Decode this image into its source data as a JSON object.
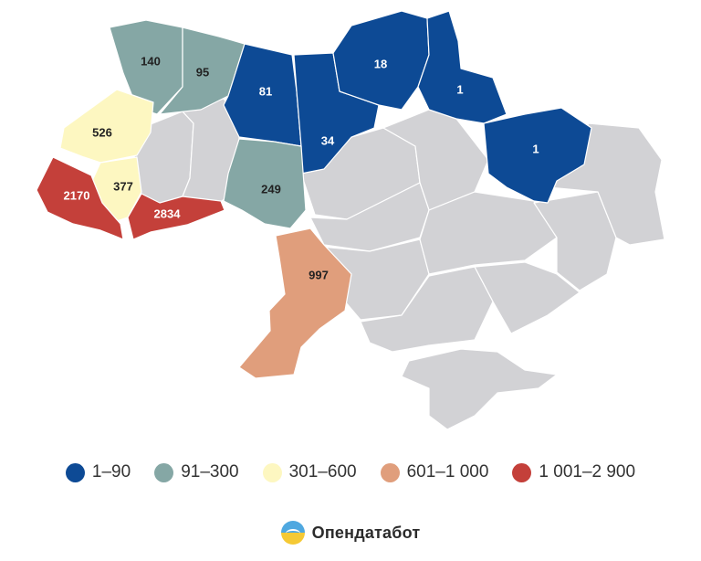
{
  "colors": {
    "bin_1": "#0d4a95",
    "bin_2": "#85a7a5",
    "bin_3": "#fdf7c1",
    "bin_4": "#e09e7c",
    "bin_5": "#c4403a",
    "no_data": "#d2d2d5"
  },
  "regions": {
    "volyn": "140",
    "rivne": "95",
    "zhytomyr": "81",
    "kyiv": "34",
    "chernihiv": "18",
    "sumy": "1",
    "kharkiv": "1",
    "vinnytsia": "249",
    "odesa": "997",
    "lviv": "526",
    "ivano_frankivsk": "377",
    "zakarpattia": "2170",
    "chernivtsi": "2834"
  },
  "legend": [
    {
      "label": "1–90",
      "color": "#0d4a95"
    },
    {
      "label": "91–300",
      "color": "#85a7a5"
    },
    {
      "label": "301–600",
      "color": "#fdf7c1"
    },
    {
      "label": "601–1 000",
      "color": "#e09e7c"
    },
    {
      "label": "1 001–2 900",
      "color": "#c4403a"
    }
  ],
  "brand": {
    "name": "Опендатабот",
    "logo_icon": "opendatabot-logo-icon"
  }
}
